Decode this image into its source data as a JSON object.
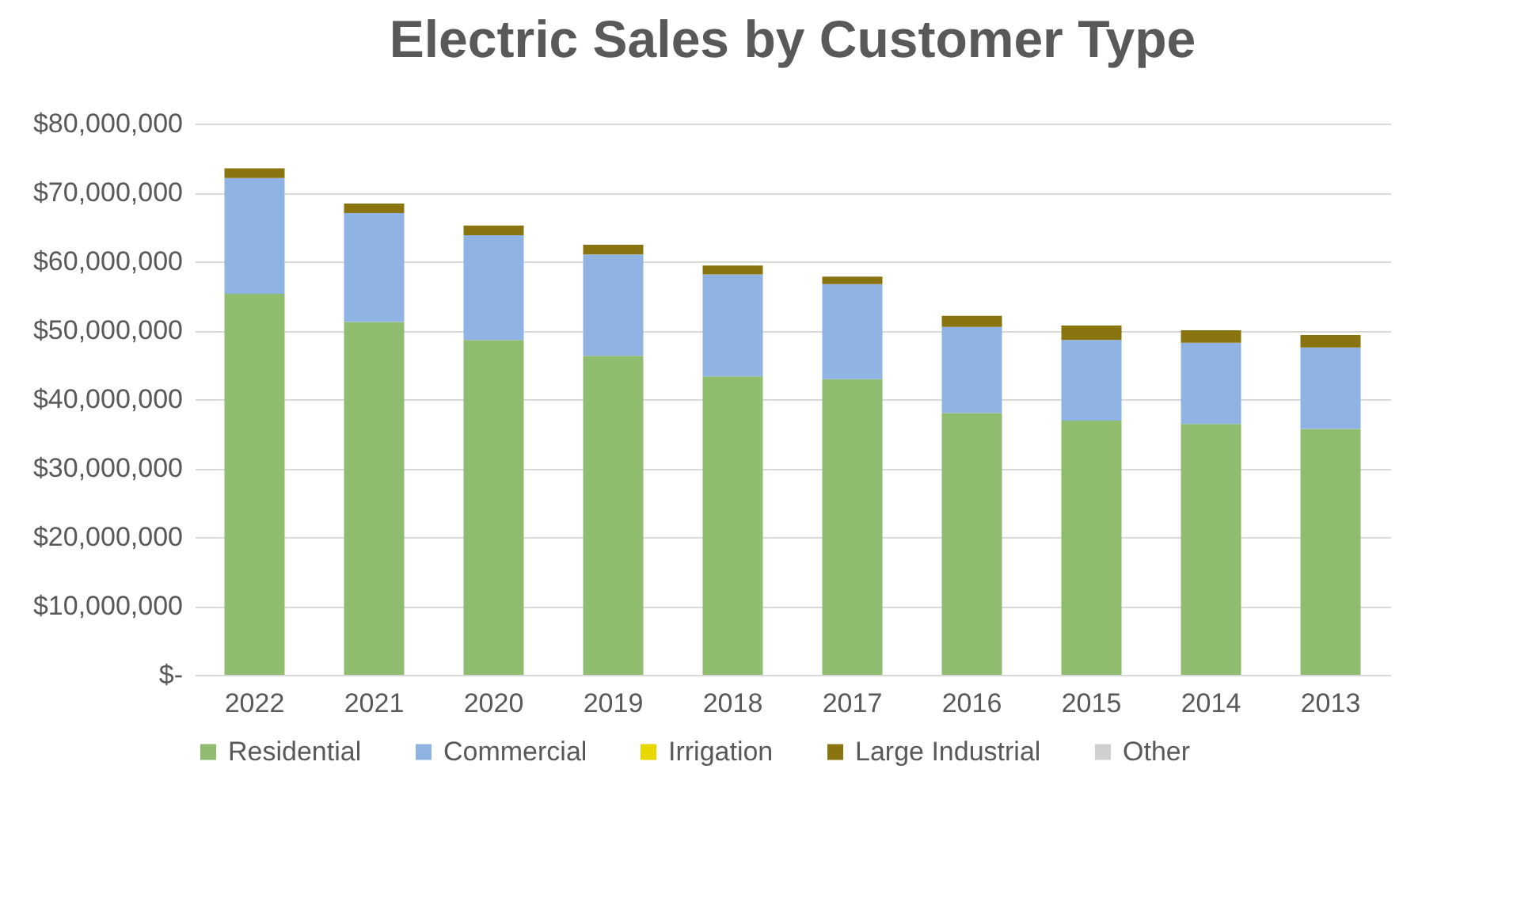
{
  "chart_data": {
    "type": "bar",
    "title": "Electric Sales by Customer Type",
    "stacked": true,
    "grid": "y",
    "legend": "bottom",
    "categories": [
      "2022",
      "2021",
      "2020",
      "2019",
      "2018",
      "2017",
      "2016",
      "2015",
      "2014",
      "2013"
    ],
    "series": [
      {
        "name": "Residential",
        "color": "#8fbc6e",
        "values": [
          55300000,
          51200000,
          48600000,
          46300000,
          43300000,
          42900000,
          38000000,
          36900000,
          36400000,
          35700000
        ]
      },
      {
        "name": "Commercial",
        "color": "#8fb4e3",
        "values": [
          16800000,
          15800000,
          15200000,
          14700000,
          14800000,
          13800000,
          12500000,
          11700000,
          11800000,
          11800000
        ]
      },
      {
        "name": "Irrigation",
        "color": "#e8d800",
        "values": [
          0,
          0,
          0,
          0,
          0,
          0,
          0,
          0,
          0,
          0
        ]
      },
      {
        "name": "Large Industrial",
        "color": "#8a7410",
        "values": [
          1400000,
          1400000,
          1400000,
          1400000,
          1300000,
          1100000,
          1600000,
          2100000,
          1800000,
          1800000
        ]
      },
      {
        "name": "Other",
        "color": "#d0d0d0",
        "values": [
          0,
          0,
          0,
          0,
          0,
          0,
          0,
          0,
          0,
          0
        ]
      }
    ],
    "ylim": [
      0,
      80000000
    ],
    "yticks": [
      {
        "value": 0,
        "label": "$-"
      },
      {
        "value": 10000000,
        "label": "$10,000,000"
      },
      {
        "value": 20000000,
        "label": "$20,000,000"
      },
      {
        "value": 30000000,
        "label": "$30,000,000"
      },
      {
        "value": 40000000,
        "label": "$40,000,000"
      },
      {
        "value": 50000000,
        "label": "$50,000,000"
      },
      {
        "value": 60000000,
        "label": "$60,000,000"
      },
      {
        "value": 70000000,
        "label": "$70,000,000"
      },
      {
        "value": 80000000,
        "label": "$80,000,000"
      }
    ]
  }
}
